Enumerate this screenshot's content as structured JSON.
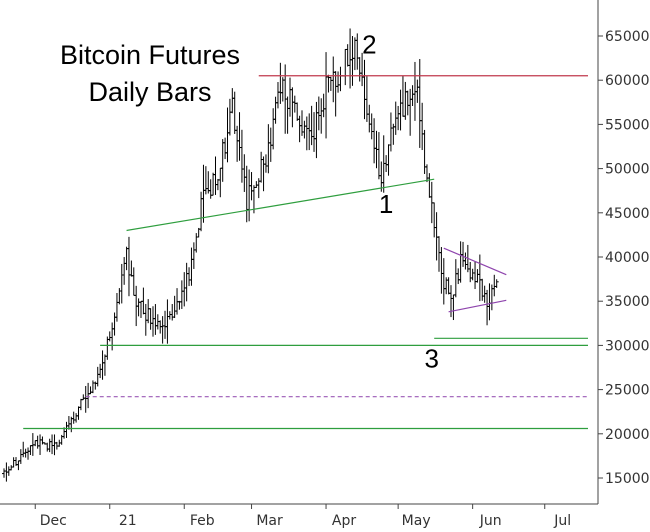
{
  "chart_data": {
    "type": "ohlc",
    "title": "Bitcoin Futures",
    "subtitle": "Daily Bars",
    "xlabel": "",
    "ylabel": "",
    "y_axis_side": "right",
    "ylim": [
      12000,
      67000
    ],
    "y_ticks": [
      15000,
      20000,
      25000,
      30000,
      35000,
      40000,
      45000,
      50000,
      55000,
      60000,
      65000
    ],
    "y_tick_labels": [
      "15000",
      "20000",
      "25000",
      "30000",
      "35000",
      "40000",
      "45000",
      "50000",
      "55000",
      "60000",
      "65000"
    ],
    "x_range": [
      "2020-11-18",
      "2021-07-19"
    ],
    "x_ticks": [
      {
        "date": "2020-12-01",
        "label": "Dec"
      },
      {
        "date": "2021-01-01",
        "label": "21"
      },
      {
        "date": "2021-02-01",
        "label": "Feb"
      },
      {
        "date": "2021-03-01",
        "label": "Mar"
      },
      {
        "date": "2021-04-01",
        "label": "Apr"
      },
      {
        "date": "2021-05-01",
        "label": "May"
      },
      {
        "date": "2021-06-01",
        "label": "Jun"
      },
      {
        "date": "2021-07-01",
        "label": "Jul"
      }
    ],
    "grid": false,
    "legend": "none",
    "bar_color": "#000000",
    "anchor_path": [
      [
        "2020-11-18",
        15500
      ],
      [
        "2020-11-25",
        17500
      ],
      [
        "2020-12-01",
        19000
      ],
      [
        "2020-12-10",
        18500
      ],
      [
        "2020-12-16",
        21500
      ],
      [
        "2020-12-20",
        23500
      ],
      [
        "2020-12-28",
        27000
      ],
      [
        "2021-01-03",
        33000
      ],
      [
        "2021-01-08",
        40000
      ],
      [
        "2021-01-12",
        35000
      ],
      [
        "2021-01-21",
        32000
      ],
      [
        "2021-01-28",
        34000
      ],
      [
        "2021-02-03",
        38000
      ],
      [
        "2021-02-09",
        47000
      ],
      [
        "2021-02-15",
        49000
      ],
      [
        "2021-02-21",
        57000
      ],
      [
        "2021-02-27",
        46500
      ],
      [
        "2021-03-08",
        52000
      ],
      [
        "2021-03-13",
        60000
      ],
      [
        "2021-03-25",
        53000
      ],
      [
        "2021-04-01",
        59000
      ],
      [
        "2021-04-13",
        63500
      ],
      [
        "2021-04-18",
        56000
      ],
      [
        "2021-04-24",
        49000
      ],
      [
        "2021-05-01",
        57000
      ],
      [
        "2021-05-09",
        58000
      ],
      [
        "2021-05-13",
        49000
      ],
      [
        "2021-05-19",
        38000
      ],
      [
        "2021-05-23",
        35000
      ],
      [
        "2021-05-27",
        39500
      ],
      [
        "2021-06-03",
        37500
      ],
      [
        "2021-06-07",
        35000
      ],
      [
        "2021-06-11",
        36500
      ]
    ],
    "annotations": [
      {
        "type": "hline",
        "y": 60500,
        "x_start": "2021-03-04",
        "x_end": "2021-07-19",
        "color": "#c0394d",
        "style": "solid"
      },
      {
        "type": "line",
        "points": [
          [
            "2021-01-08",
            43000
          ],
          [
            "2021-05-16",
            48800
          ]
        ],
        "color": "#2e9e3e",
        "style": "solid"
      },
      {
        "type": "hline",
        "y": 30000,
        "x_start": "2020-12-28",
        "x_end": "2021-07-19",
        "color": "#2e9e3e",
        "style": "solid"
      },
      {
        "type": "hline",
        "y": 30800,
        "x_start": "2021-05-16",
        "x_end": "2021-07-19",
        "color": "#2e9e3e",
        "style": "solid"
      },
      {
        "type": "hline",
        "y": 24200,
        "x_start": "2020-12-22",
        "x_end": "2021-07-19",
        "color": "#9b59b6",
        "style": "dashed"
      },
      {
        "type": "hline",
        "y": 20600,
        "x_start": "2020-11-26",
        "x_end": "2021-07-19",
        "color": "#2e9e3e",
        "style": "solid"
      },
      {
        "type": "line",
        "points": [
          [
            "2021-05-20",
            41000
          ],
          [
            "2021-06-15",
            38000
          ]
        ],
        "color": "#8e44ad",
        "style": "solid"
      },
      {
        "type": "line",
        "points": [
          [
            "2021-05-22",
            33800
          ],
          [
            "2021-06-15",
            35100
          ]
        ],
        "color": "#8e44ad",
        "style": "solid"
      }
    ],
    "wave_labels": [
      {
        "text": "2",
        "date": "2021-04-19",
        "y": 63000
      },
      {
        "text": "1",
        "date": "2021-04-26",
        "y": 45000
      },
      {
        "text": "3",
        "date": "2021-05-15",
        "y": 27500
      }
    ]
  }
}
